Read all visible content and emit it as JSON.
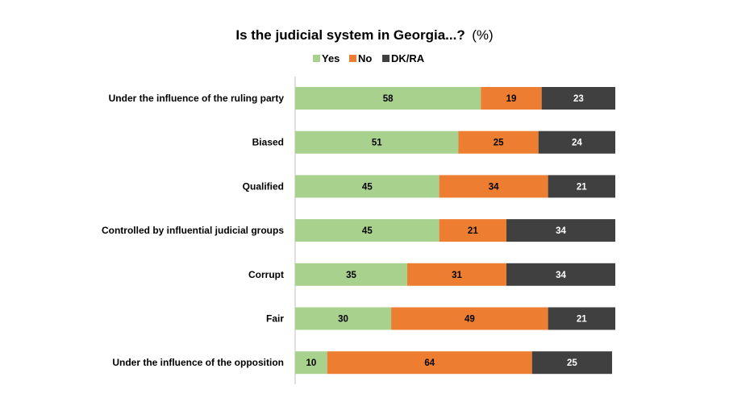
{
  "chart_data": {
    "type": "bar",
    "orientation": "horizontal",
    "stacked": true,
    "title": "Is the judicial system in Georgia...?",
    "title_unit": "(%)",
    "legend_position": "top",
    "categories": [
      "Under the influence of the ruling party",
      "Biased",
      "Qualified",
      "Controlled by influential judicial groups",
      "Corrupt",
      "Fair",
      "Under the influence of the opposition"
    ],
    "series": [
      {
        "name": "Yes",
        "color": "#a9d18e",
        "label_color": "#000000",
        "values": [
          58,
          51,
          45,
          45,
          35,
          30,
          10
        ]
      },
      {
        "name": "No",
        "color": "#ed7d31",
        "label_color": "#000000",
        "values": [
          19,
          25,
          34,
          21,
          31,
          49,
          64
        ]
      },
      {
        "name": "DK/RA",
        "color": "#404040",
        "label_color": "#ffffff",
        "values": [
          23,
          24,
          21,
          34,
          34,
          21,
          25
        ]
      }
    ],
    "xlim": [
      0,
      100
    ],
    "grid": false
  }
}
